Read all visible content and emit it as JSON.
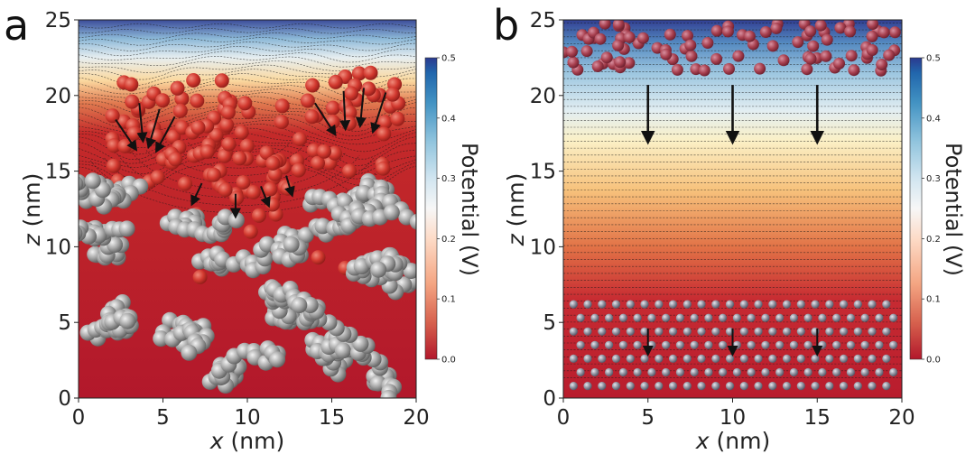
{
  "chart_data": [
    {
      "type": "heatmap",
      "panel_label": "a",
      "title": "",
      "xlabel_var": "x",
      "xlabel_unit": " (nm)",
      "ylabel_var": "z",
      "ylabel_unit": " (nm)",
      "xlim": [
        0,
        20
      ],
      "ylim": [
        0,
        25
      ],
      "x_ticks": [
        "0",
        "5",
        "10",
        "15",
        "20"
      ],
      "y_ticks": [
        "0",
        "5",
        "10",
        "15",
        "20",
        "25"
      ],
      "colorbar": {
        "label": "Potential (V)",
        "range": [
          0.0,
          0.5
        ],
        "ticks": [
          "0.0",
          "0.1",
          "0.2",
          "0.3",
          "0.4",
          "0.5"
        ],
        "colors": [
          "#b2182b",
          "#d6604d",
          "#f4a582",
          "#fddbc7",
          "#f7f7f7",
          "#d1e5f0",
          "#92c5de",
          "#4393c3",
          "#2166ac",
          "#2b3a8f"
        ]
      },
      "structure": "disordered porous carbon electrode (grey spheres) with adsorbed ions (red spheres)",
      "arrows": "electric field arrows pointing into electrode at concave interface",
      "colors": {
        "electrode_atom": "#9e9e9e",
        "ion": "#c93a34"
      }
    },
    {
      "type": "heatmap",
      "panel_label": "b",
      "title": "",
      "xlabel_var": "x",
      "xlabel_unit": " (nm)",
      "ylabel_var": "z",
      "ylabel_unit": " (nm)",
      "xlim": [
        0,
        20
      ],
      "ylim": [
        0,
        25
      ],
      "x_ticks": [
        "0",
        "5",
        "10",
        "15",
        "20"
      ],
      "y_ticks": [
        "0",
        "5",
        "10",
        "15",
        "20",
        "25"
      ],
      "colorbar": {
        "label": "Potential (V)",
        "range": [
          0.0,
          0.5
        ],
        "ticks": [
          "0.0",
          "0.1",
          "0.2",
          "0.3",
          "0.4",
          "0.5"
        ],
        "colors": [
          "#b2182b",
          "#d6604d",
          "#f4a582",
          "#fddbc7",
          "#f7f7f7",
          "#d1e5f0",
          "#92c5de",
          "#4393c3",
          "#2166ac",
          "#2b3a8f"
        ]
      },
      "structure": "ordered planar graphite electrode (grey lattice) with ion layer at top",
      "arrows": "uniform downward field arrows at x = 5, 10, 15 nm",
      "arrow_x": [
        5,
        10,
        15
      ],
      "colors": {
        "electrode_atom": "#8d8f9c",
        "ion": "#b8454a"
      }
    }
  ]
}
